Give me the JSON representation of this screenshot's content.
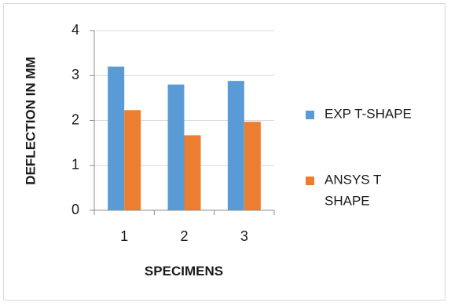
{
  "chart_data": {
    "type": "bar",
    "categories": [
      "1",
      "2",
      "3"
    ],
    "series": [
      {
        "name": "EXP T-SHAPE",
        "values": [
          3.2,
          2.8,
          2.88
        ],
        "color": "#5B9BD5"
      },
      {
        "name": "ANSYS T SHAPE",
        "values": [
          2.23,
          1.67,
          1.97
        ],
        "color": "#ED7D31"
      }
    ],
    "xlabel": "SPECIMENS",
    "ylabel": "DEFLECTION IN MM",
    "ylim": [
      0,
      4
    ],
    "yticks": [
      "0",
      "1",
      "2",
      "3",
      "4"
    ],
    "grid": true,
    "legend_position": "right",
    "legend_lines": [
      [
        "EXP T-SHAPE"
      ],
      [
        "ANSYS T",
        "SHAPE"
      ]
    ]
  }
}
